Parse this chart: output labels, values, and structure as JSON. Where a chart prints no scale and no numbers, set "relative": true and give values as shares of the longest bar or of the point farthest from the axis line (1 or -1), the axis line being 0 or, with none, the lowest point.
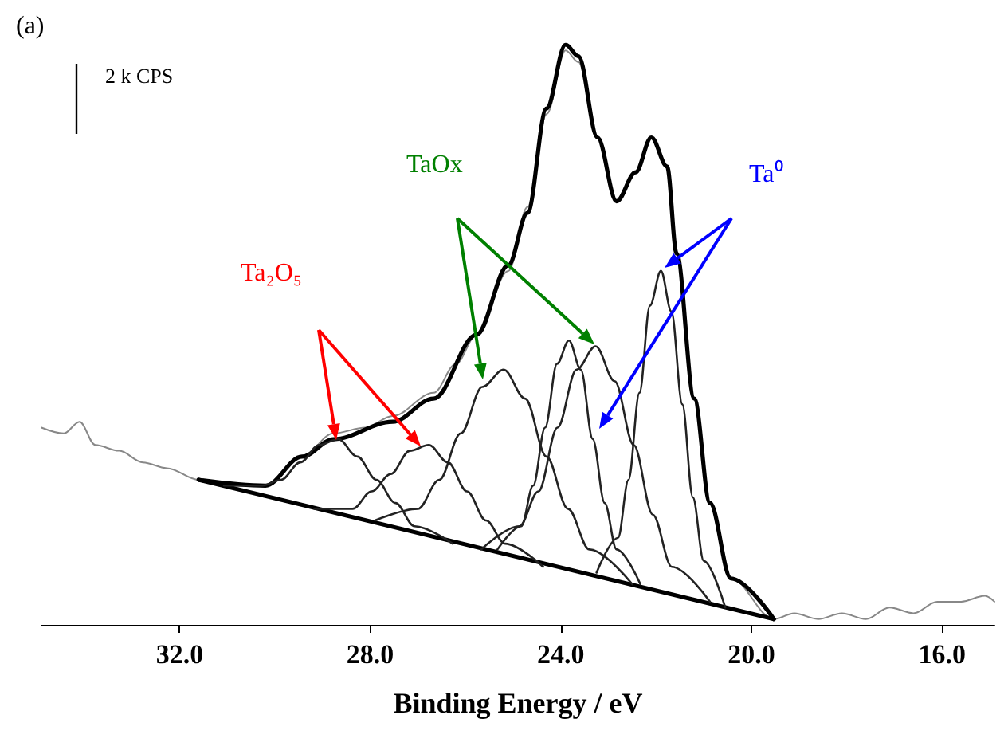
{
  "chart_data": {
    "type": "line",
    "relative": true,
    "xlabel": "Binding Energy / eV",
    "xlim": [
      34.9,
      14.9
    ],
    "xticks": [
      {
        "value": 32,
        "label": "32.0"
      },
      {
        "value": 28,
        "label": "28.0"
      },
      {
        "value": 24,
        "label": "24.0"
      },
      {
        "value": 20,
        "label": "20.0"
      },
      {
        "value": 16,
        "label": "16.0"
      }
    ],
    "tick_labels": "x",
    "grid": false,
    "marker": "none",
    "line_style": "solid",
    "annotations": [
      "(a)",
      "2 k CPS",
      "Ta₂O₅",
      "TaOx",
      "Ta⁰"
    ],
    "series": [
      {
        "color": "#888888",
        "x": [
          34.9,
          34.43,
          34.1,
          33.77,
          33.27,
          32.77,
          32.27,
          31.6,
          31.0,
          30.2,
          29.43,
          28.77,
          28.1,
          27.53,
          26.67,
          26.2,
          25.77,
          25.1,
          24.7,
          24.3,
          23.9,
          23.63,
          23.23,
          22.83,
          22.43,
          22.1,
          21.77,
          21.57,
          21.2,
          20.87,
          20.43,
          19.53,
          19.1,
          18.6,
          18.1,
          17.6,
          17.1,
          16.6,
          16.1,
          15.6,
          15.1,
          14.9
        ],
        "values": [
          0.34,
          0.33,
          0.35,
          0.31,
          0.3,
          0.28,
          0.27,
          0.25,
          0.24,
          0.24,
          0.29,
          0.33,
          0.34,
          0.36,
          0.4,
          0.45,
          0.5,
          0.61,
          0.72,
          0.88,
          0.99,
          0.97,
          0.84,
          0.73,
          0.78,
          0.84,
          0.79,
          0.64,
          0.39,
          0.21,
          0.08,
          0.01,
          0.02,
          0.01,
          0.02,
          0.01,
          0.03,
          0.02,
          0.04,
          0.04,
          0.05,
          0.04
        ]
      },
      {
        "color": "#000000",
        "x": [
          31.6,
          30.2,
          29.43,
          28.77,
          27.53,
          26.67,
          25.77,
          25.1,
          24.7,
          24.3,
          23.9,
          23.63,
          23.23,
          22.83,
          22.43,
          22.1,
          21.77,
          21.57,
          21.2,
          20.87,
          20.43,
          19.53
        ],
        "values": [
          0.25,
          0.24,
          0.29,
          0.32,
          0.35,
          0.39,
          0.5,
          0.62,
          0.71,
          0.89,
          1,
          0.98,
          0.84,
          0.73,
          0.78,
          0.84,
          0.79,
          0.64,
          0.39,
          0.21,
          0.08,
          0.01
        ]
      },
      {
        "color": "#000000",
        "x": [
          31.6,
          19.53
        ],
        "values": [
          0.25,
          0.01
        ]
      },
      {
        "color": "#222222",
        "x": [
          31.07,
          30.27,
          29.87,
          29.47,
          29.07,
          28.67,
          28.27,
          27.87,
          27.47,
          27.07,
          26.27
        ],
        "values": [
          0.24,
          0.24,
          0.25,
          0.28,
          0.31,
          0.32,
          0.29,
          0.25,
          0.21,
          0.17,
          0.14
        ]
      },
      {
        "color": "#222222",
        "x": [
          29.17,
          28.37,
          27.97,
          27.57,
          27.17,
          26.77,
          26.37,
          25.97,
          25.57,
          25.17,
          24.37
        ],
        "values": [
          0.2,
          0.2,
          0.23,
          0.26,
          0.3,
          0.31,
          0.28,
          0.23,
          0.18,
          0.14,
          0.1
        ]
      },
      {
        "color": "#222222",
        "x": [
          27.9,
          27.0,
          26.55,
          26.1,
          25.65,
          25.2,
          24.75,
          24.3,
          23.85,
          23.4,
          22.5
        ],
        "values": [
          0.18,
          0.2,
          0.25,
          0.33,
          0.41,
          0.44,
          0.39,
          0.29,
          0.2,
          0.13,
          0.07
        ]
      },
      {
        "color": "#222222",
        "x": [
          25.33,
          24.83,
          24.58,
          24.33,
          24.08,
          23.83,
          23.58,
          23.33,
          23.08,
          22.83,
          22.33
        ],
        "values": [
          0.13,
          0.17,
          0.24,
          0.34,
          0.45,
          0.49,
          0.44,
          0.32,
          0.21,
          0.13,
          0.07
        ]
      },
      {
        "color": "#222222",
        "x": [
          25.67,
          24.87,
          24.47,
          24.07,
          23.67,
          23.27,
          22.87,
          22.47,
          22.07,
          21.67,
          20.87
        ],
        "values": [
          0.13,
          0.17,
          0.23,
          0.34,
          0.44,
          0.48,
          0.42,
          0.31,
          0.19,
          0.1,
          0.04
        ]
      },
      {
        "color": "#222222",
        "x": [
          23.25,
          22.8,
          22.58,
          22.35,
          22.13,
          21.9,
          21.68,
          21.45,
          21.23,
          21.0,
          20.55
        ],
        "values": [
          0.09,
          0.15,
          0.25,
          0.4,
          0.55,
          0.61,
          0.54,
          0.38,
          0.22,
          0.11,
          0.03
        ]
      }
    ]
  }
}
